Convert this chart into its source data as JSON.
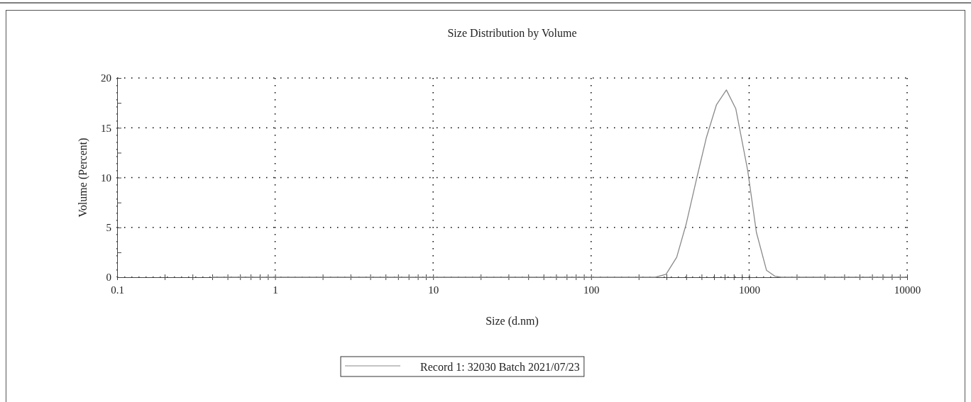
{
  "chart_data": {
    "type": "line",
    "title": "Size Distribution by Volume",
    "xlabel": "Size (d.nm)",
    "ylabel": "Volume (Percent)",
    "log": "x",
    "grid": true,
    "line_style": "solid",
    "marker": "none",
    "legend": "bottom",
    "xlim": [
      0.1,
      10000
    ],
    "ylim": [
      0,
      20
    ],
    "xticks": [
      0.1,
      {
        "value": 0.2,
        "label": null
      },
      {
        "value": 0.3,
        "label": null
      },
      {
        "value": 0.4,
        "label": null
      },
      {
        "value": 0.5,
        "label": null
      },
      {
        "value": 0.6,
        "label": null
      },
      {
        "value": 0.7,
        "label": null
      },
      {
        "value": 0.8,
        "label": null
      },
      {
        "value": 0.9,
        "label": null
      },
      1,
      {
        "value": 2,
        "label": null
      },
      {
        "value": 3,
        "label": null
      },
      {
        "value": 4,
        "label": null
      },
      {
        "value": 5,
        "label": null
      },
      {
        "value": 6,
        "label": null
      },
      {
        "value": 7,
        "label": null
      },
      {
        "value": 8,
        "label": null
      },
      {
        "value": 9,
        "label": null
      },
      10,
      {
        "value": 20,
        "label": null
      },
      {
        "value": 30,
        "label": null
      },
      {
        "value": 40,
        "label": null
      },
      {
        "value": 50,
        "label": null
      },
      {
        "value": 60,
        "label": null
      },
      {
        "value": 70,
        "label": null
      },
      {
        "value": 80,
        "label": null
      },
      {
        "value": 90,
        "label": null
      },
      100,
      {
        "value": 200,
        "label": null
      },
      {
        "value": 300,
        "label": null
      },
      {
        "value": 400,
        "label": null
      },
      {
        "value": 500,
        "label": null
      },
      {
        "value": 600,
        "label": null
      },
      {
        "value": 700,
        "label": null
      },
      {
        "value": 800,
        "label": null
      },
      {
        "value": 900,
        "label": null
      },
      1000,
      {
        "value": 2000,
        "label": null
      },
      {
        "value": 3000,
        "label": null
      },
      {
        "value": 4000,
        "label": null
      },
      {
        "value": 5000,
        "label": null
      },
      {
        "value": 6000,
        "label": null
      },
      {
        "value": 7000,
        "label": null
      },
      {
        "value": 8000,
        "label": null
      },
      {
        "value": 9000,
        "label": null
      },
      10000
    ],
    "yticks": [
      0,
      {
        "value": 2.5,
        "label": null
      },
      5,
      {
        "value": 7.5,
        "label": null
      },
      10,
      {
        "value": 12.5,
        "label": null
      },
      15,
      {
        "value": 17.5,
        "label": null
      },
      20
    ],
    "series": [
      {
        "name": "Record 1: 32030 Batch 2021/07/23",
        "color": "#8a8a8a",
        "x": [
          0.4,
          255,
          298,
          348,
          399,
          467,
          536,
          621,
          718,
          824,
          980,
          1112,
          1288,
          1456,
          1600,
          10000
        ],
        "values": [
          0,
          0,
          0.3,
          2.0,
          5.3,
          10.0,
          14.0,
          17.3,
          18.8,
          16.9,
          10.7,
          4.5,
          0.7,
          0.1,
          0,
          0
        ]
      }
    ]
  }
}
